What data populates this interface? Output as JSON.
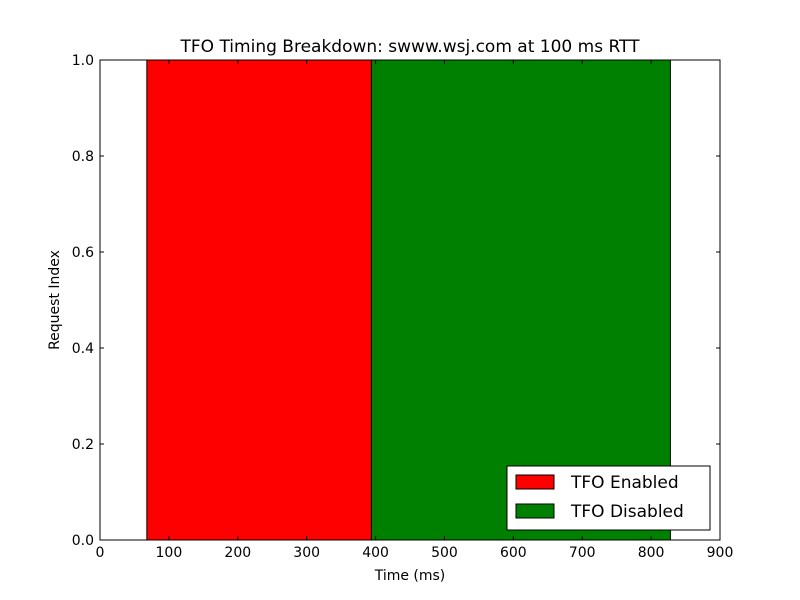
{
  "chart_data": {
    "type": "bar",
    "orientation": "horizontal",
    "title": "TFO Timing Breakdown: swww.wsj.com at 100 ms RTT",
    "xlabel": "Time (ms)",
    "ylabel": "Request Index",
    "xlim": [
      0,
      900
    ],
    "ylim": [
      0.0,
      1.0
    ],
    "xticks": [
      "0",
      "100",
      "200",
      "300",
      "400",
      "500",
      "600",
      "700",
      "800",
      "900"
    ],
    "yticks": [
      "0.0",
      "0.2",
      "0.4",
      "0.6",
      "0.8",
      "1.0"
    ],
    "grid": false,
    "legend_position": "bottom-right",
    "series": [
      {
        "name": "TFO Enabled",
        "color": "#ff0000",
        "bars": [
          {
            "start": 68,
            "end": 394,
            "y0": 0.0,
            "y1": 1.0
          }
        ]
      },
      {
        "name": "TFO Disabled",
        "color": "#008000",
        "bars": [
          {
            "start": 394,
            "end": 828,
            "y0": 0.0,
            "y1": 1.0
          }
        ]
      }
    ]
  }
}
